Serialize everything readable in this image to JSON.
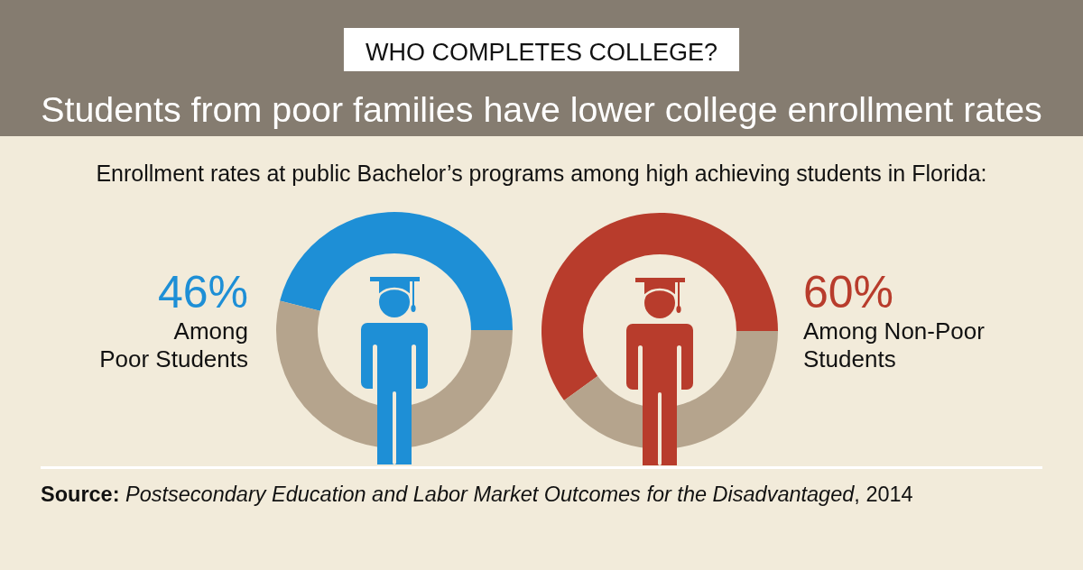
{
  "chart_data": [
    {
      "type": "donut",
      "title": "Students from poor families have lower college enrollment rates",
      "subtitle": "Enrollment rates at public Bachelor’s programs among high achieving students in Florida:",
      "annotations": [
        "WHO COMPLETES COLLEGE?",
        "Source: Postsecondary Education and Labor Market Outcomes for the Disadvantaged, 2014"
      ],
      "categories": [
        "Among Poor Students",
        null
      ],
      "values": [
        46,
        54
      ],
      "colors": [
        "#1e8fd6",
        "#b5a48d"
      ],
      "value_labels": [
        "46%",
        null
      ]
    },
    {
      "type": "donut",
      "categories": [
        "Among Non-Poor Students",
        null
      ],
      "values": [
        60,
        40
      ],
      "colors": [
        "#b83c2c",
        "#b5a48d"
      ],
      "value_labels": [
        "60%",
        null
      ]
    }
  ]
}
